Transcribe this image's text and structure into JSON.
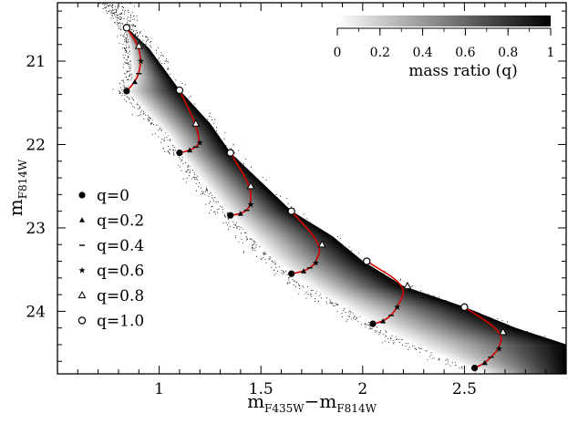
{
  "chart_data": {
    "type": "scatter",
    "xlabel": {
      "base": "m",
      "sub1": "F435W",
      "op": "−",
      "base2": "m",
      "sub2": "F814W"
    },
    "ylabel": {
      "base": "m",
      "sub": "F814W"
    },
    "xlim": [
      0.5,
      3.0
    ],
    "ylim": [
      24.75,
      20.3
    ],
    "y_inverted": true,
    "xticks": [
      1,
      1.5,
      2,
      2.5
    ],
    "xtick_labels": [
      "1",
      "1.5",
      "2",
      "2.5"
    ],
    "yticks": [
      21,
      22,
      23,
      24
    ],
    "ytick_labels": [
      "21",
      "22",
      "23",
      "24"
    ],
    "colorbar": {
      "label": "mass ratio (q)",
      "ticks": [
        0,
        0.2,
        0.4,
        0.6,
        0.8,
        1
      ],
      "tick_labels": [
        "0",
        "0.2",
        "0.4",
        "0.6",
        "0.8",
        "1"
      ],
      "cmap": [
        "#ffffff",
        "#000000"
      ]
    },
    "legend": {
      "position": "left",
      "entries": [
        {
          "label": "q=0",
          "marker": "filled-circle",
          "q": 0
        },
        {
          "label": "q=0.2",
          "marker": "filled-triangle",
          "q": 0.2
        },
        {
          "label": "q=0.4",
          "marker": "dash",
          "q": 0.4
        },
        {
          "label": "q=0.6",
          "marker": "star",
          "q": 0.6
        },
        {
          "label": "q=0.8",
          "marker": "open-triangle",
          "q": 0.8
        },
        {
          "label": "q=1.0",
          "marker": "open-circle",
          "q": 1.0
        }
      ]
    },
    "single_star_ridge": [
      [
        0.84,
        20.6
      ],
      [
        0.86,
        20.9
      ],
      [
        0.87,
        21.2
      ],
      [
        0.84,
        21.36
      ],
      [
        0.95,
        21.65
      ],
      [
        1.05,
        21.9
      ],
      [
        1.1,
        22.1
      ],
      [
        1.2,
        22.4
      ],
      [
        1.3,
        22.7
      ],
      [
        1.35,
        22.85
      ],
      [
        1.45,
        23.1
      ],
      [
        1.55,
        23.35
      ],
      [
        1.65,
        23.55
      ],
      [
        1.8,
        23.8
      ],
      [
        1.95,
        24.0
      ],
      [
        2.05,
        24.15
      ],
      [
        2.25,
        24.4
      ],
      [
        2.45,
        24.6
      ],
      [
        2.55,
        24.7
      ],
      [
        2.62,
        24.78
      ]
    ],
    "equal_mass_ridge": [
      [
        0.84,
        20.6
      ],
      [
        0.95,
        20.85
      ],
      [
        1.1,
        21.35
      ],
      [
        1.25,
        21.75
      ],
      [
        1.35,
        22.1
      ],
      [
        1.5,
        22.45
      ],
      [
        1.65,
        22.8
      ],
      [
        1.85,
        23.1
      ],
      [
        2.0,
        23.4
      ],
      [
        2.2,
        23.7
      ],
      [
        2.5,
        23.95
      ],
      [
        2.75,
        24.2
      ],
      [
        3.0,
        24.4
      ]
    ],
    "mass_ratio_tracks": [
      {
        "q": [
          0,
          0.2,
          0.4,
          0.6,
          0.8,
          1.0
        ],
        "x": [
          0.84,
          0.88,
          0.9,
          0.91,
          0.9,
          0.84
        ],
        "y": [
          21.36,
          21.25,
          21.15,
          21.0,
          20.82,
          20.6
        ]
      },
      {
        "q": [
          0,
          0.2,
          0.4,
          0.6,
          0.8,
          1.0
        ],
        "x": [
          1.1,
          1.15,
          1.18,
          1.2,
          1.18,
          1.1
        ],
        "y": [
          22.1,
          22.07,
          22.03,
          21.98,
          21.75,
          21.35
        ]
      },
      {
        "q": [
          0,
          0.2,
          0.4,
          0.6,
          0.8,
          1.0
        ],
        "x": [
          1.35,
          1.4,
          1.43,
          1.45,
          1.45,
          1.35
        ],
        "y": [
          22.85,
          22.83,
          22.79,
          22.72,
          22.5,
          22.1
        ]
      },
      {
        "q": [
          0,
          0.2,
          0.4,
          0.6,
          0.8,
          1.0
        ],
        "x": [
          1.65,
          1.71,
          1.74,
          1.77,
          1.8,
          1.65
        ],
        "y": [
          23.55,
          23.52,
          23.48,
          23.42,
          23.2,
          22.8
        ]
      },
      {
        "q": [
          0,
          0.2,
          0.4,
          0.6,
          0.8,
          1.0
        ],
        "x": [
          2.05,
          2.1,
          2.14,
          2.17,
          2.22,
          2.02
        ],
        "y": [
          24.15,
          24.12,
          24.05,
          23.95,
          23.7,
          23.4
        ]
      },
      {
        "q": [
          0,
          0.2,
          0.4,
          0.6,
          0.8,
          1.0
        ],
        "x": [
          2.55,
          2.6,
          2.63,
          2.67,
          2.69,
          2.5
        ],
        "y": [
          24.68,
          24.62,
          24.55,
          24.45,
          24.25,
          23.95
        ]
      }
    ]
  }
}
